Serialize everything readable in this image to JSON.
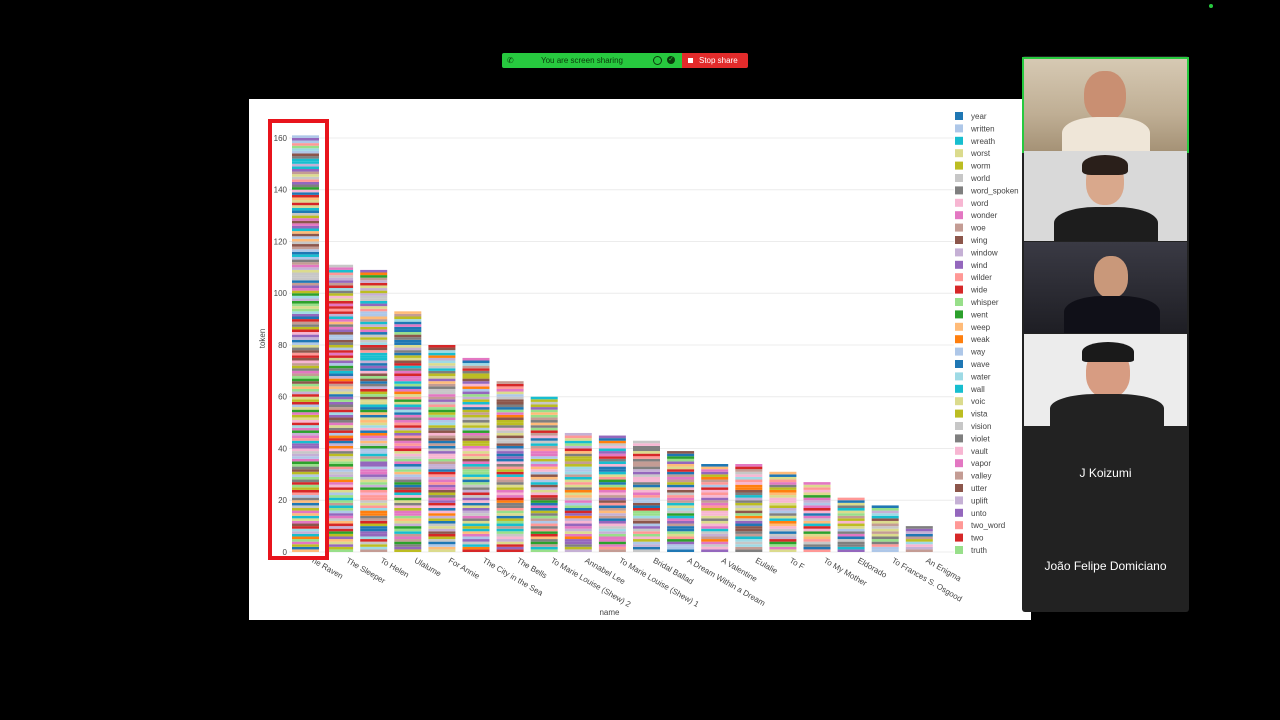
{
  "share_bar": {
    "status": "You are screen sharing",
    "stop_label": "Stop share"
  },
  "chart_data": {
    "type": "bar",
    "stacked": true,
    "xlabel": "name",
    "ylabel": "token",
    "ylim": [
      0,
      165
    ],
    "yticks": [
      0,
      20,
      40,
      60,
      80,
      100,
      120,
      140,
      160
    ],
    "categories": [
      "The Raven",
      "The Sleeper",
      "To Helen",
      "Ulalume",
      "For Annie",
      "The City in the Sea",
      "The Bells",
      "To Marie Louise (Shew) 2",
      "Annabel Lee",
      "To Marie Louise (Shew) 1",
      "Bridal Ballad",
      "A Dream Within a Dream",
      "A Valentine",
      "Eulalie",
      "To F",
      "To My Mother",
      "Eldorado",
      "To Frances S. Osgood",
      "An Enigma"
    ],
    "category_tick_labels": [
      "he Raven",
      "The Sleeper",
      "To Helen",
      "Ulalume",
      "For Annie",
      "The City in the Sea",
      "The Bells",
      "To Marie Louise (Shew) 2",
      "Annabel Lee",
      "To Marie Louise (Shew) 1",
      "Bridal Ballad",
      "A Dream Within a Dream",
      "A Valentine",
      "Eulalie",
      "To F",
      "To My Mother",
      "Eldorado",
      "To Frances S. Osgood",
      "An Enigma"
    ],
    "totals": [
      161,
      111,
      109,
      93,
      80,
      75,
      66,
      60,
      46,
      45,
      43,
      39,
      34,
      34,
      31,
      27,
      21,
      18,
      10
    ],
    "highlighted_category": "The Raven",
    "highlight_color": "#e8141c",
    "legend_position": "right",
    "legend": [
      {
        "name": "year",
        "color": "#1f77b4"
      },
      {
        "name": "written",
        "color": "#aec7e8"
      },
      {
        "name": "wreath",
        "color": "#17becf"
      },
      {
        "name": "worst",
        "color": "#dbdb8d"
      },
      {
        "name": "worm",
        "color": "#bcbd22"
      },
      {
        "name": "world",
        "color": "#c7c7c7"
      },
      {
        "name": "word_spoken",
        "color": "#7f7f7f"
      },
      {
        "name": "word",
        "color": "#f7b6d2"
      },
      {
        "name": "wonder",
        "color": "#e377c2"
      },
      {
        "name": "woe",
        "color": "#c49c94"
      },
      {
        "name": "wing",
        "color": "#8c564b"
      },
      {
        "name": "window",
        "color": "#c5b0d5"
      },
      {
        "name": "wind",
        "color": "#9467bd"
      },
      {
        "name": "wilder",
        "color": "#ff9896"
      },
      {
        "name": "wide",
        "color": "#d62728"
      },
      {
        "name": "whisper",
        "color": "#98df8a"
      },
      {
        "name": "went",
        "color": "#2ca02c"
      },
      {
        "name": "weep",
        "color": "#ffbb78"
      },
      {
        "name": "weak",
        "color": "#ff7f0e"
      },
      {
        "name": "way",
        "color": "#aec7e8"
      },
      {
        "name": "wave",
        "color": "#1f77b4"
      },
      {
        "name": "water",
        "color": "#9edae5"
      },
      {
        "name": "wall",
        "color": "#17becf"
      },
      {
        "name": "voic",
        "color": "#dbdb8d"
      },
      {
        "name": "vista",
        "color": "#bcbd22"
      },
      {
        "name": "vision",
        "color": "#c7c7c7"
      },
      {
        "name": "violet",
        "color": "#7f7f7f"
      },
      {
        "name": "vault",
        "color": "#f7b6d2"
      },
      {
        "name": "vapor",
        "color": "#e377c2"
      },
      {
        "name": "valley",
        "color": "#c49c94"
      },
      {
        "name": "utter",
        "color": "#8c564b"
      },
      {
        "name": "uplift",
        "color": "#c5b0d5"
      },
      {
        "name": "unto",
        "color": "#9467bd"
      },
      {
        "name": "two_word",
        "color": "#ff9896"
      },
      {
        "name": "two",
        "color": "#d62728"
      },
      {
        "name": "truth",
        "color": "#98df8a"
      }
    ]
  },
  "participants": [
    {
      "name": "",
      "role": "video",
      "bg": "#c9b8a0"
    },
    {
      "name": "",
      "role": "video",
      "bg": "#d8d8d8"
    },
    {
      "name": "",
      "role": "video",
      "bg": "#2a2a2a"
    },
    {
      "name": "",
      "role": "video",
      "bg": "#e6e6e6"
    },
    {
      "name": "J Koizumi",
      "role": "name-only"
    },
    {
      "name": "João Felipe Domiciano",
      "role": "name-only"
    }
  ]
}
